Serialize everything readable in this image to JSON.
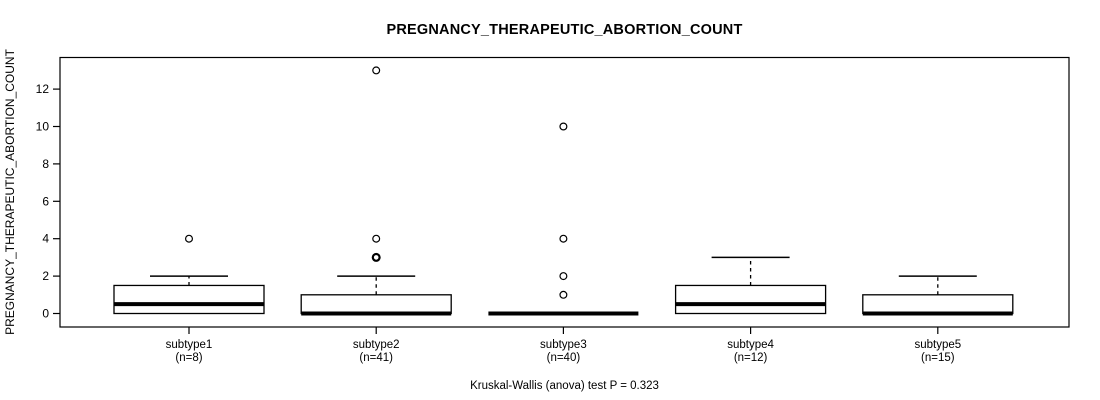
{
  "figure": {
    "background": "#ffffff",
    "foreground": "#000000"
  },
  "chart_data": {
    "type": "boxplot",
    "title": "PREGNANCY_THERAPEUTIC_ABORTION_COUNT",
    "ylabel": "PREGNANCY_THERAPEUTIC_ABORTION_COUNT",
    "xlabel": "",
    "annotation": "Kruskal-Wallis (anova) test P = 0.323",
    "ylim": [
      -0.7,
      13.7
    ],
    "yticks": [
      0,
      2,
      4,
      6,
      8,
      10,
      12
    ],
    "grid": false,
    "legend": false,
    "categories": [
      "subtype1",
      "subtype2",
      "subtype3",
      "subtype4",
      "subtype5"
    ],
    "groups": [
      {
        "label": "subtype1",
        "n": 8,
        "n_label": "(n=8)",
        "lower_whisker": 0,
        "q1": 0,
        "median": 0.5,
        "q3": 1.5,
        "upper_whisker": 2,
        "outliers": [
          4
        ]
      },
      {
        "label": "subtype2",
        "n": 41,
        "n_label": "(n=41)",
        "lower_whisker": 0,
        "q1": 0,
        "median": 0,
        "q3": 1,
        "upper_whisker": 2,
        "outliers": [
          3,
          3,
          4,
          13
        ]
      },
      {
        "label": "subtype3",
        "n": 40,
        "n_label": "(n=40)",
        "lower_whisker": 0,
        "q1": 0,
        "median": 0,
        "q3": 0,
        "upper_whisker": 0,
        "outliers": [
          1,
          2,
          4,
          10
        ]
      },
      {
        "label": "subtype4",
        "n": 12,
        "n_label": "(n=12)",
        "lower_whisker": 0,
        "q1": 0,
        "median": 0.5,
        "q3": 1.5,
        "upper_whisker": 3,
        "outliers": []
      },
      {
        "label": "subtype5",
        "n": 15,
        "n_label": "(n=15)",
        "lower_whisker": 0,
        "q1": 0,
        "median": 0,
        "q3": 1,
        "upper_whisker": 2,
        "outliers": []
      }
    ]
  }
}
